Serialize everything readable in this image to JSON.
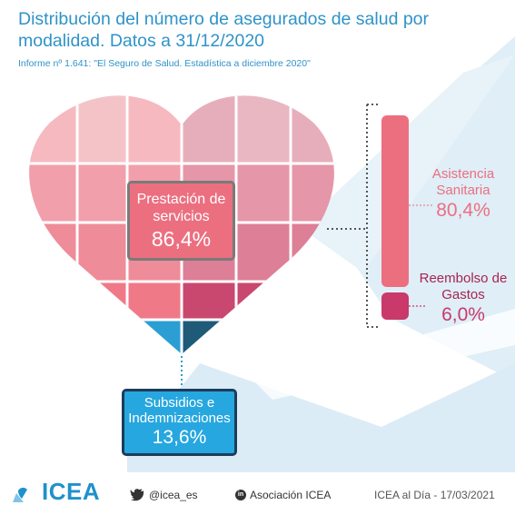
{
  "header": {
    "title": "Distribución del número de asegurados de salud por modalidad. Datos a 31/12/2020",
    "subtitle": "Informe nº 1.641: \"El Seguro de Salud. Estadística a diciembre 2020\""
  },
  "chart_data": {
    "type": "pie",
    "title": "Distribución del número de asegurados de salud por modalidad. Datos a 31/12/2020",
    "subtitle": "Informe nº 1.641: \"El Seguro de Salud. Estadística a diciembre 2020\"",
    "categories": [
      "Prestación de servicios",
      "Subsidios e Indemnizaciones"
    ],
    "values": [
      86.4,
      13.6
    ],
    "value_labels": [
      "86,4%",
      "13,6%"
    ],
    "breakdown": {
      "parent": "Prestación de servicios",
      "categories": [
        "Asistencia Sanitaria",
        "Reembolso de Gastos"
      ],
      "values": [
        80.4,
        6.0
      ],
      "value_labels": [
        "80,4%",
        "6,0%"
      ]
    },
    "colors": {
      "prestacion": "#ec6f80",
      "asistencia": "#ec6f80",
      "reembolso": "#c9396a",
      "subsidios": "#27a7df",
      "accent_blue": "#2f93c8"
    }
  },
  "footer": {
    "brand": "ICEA",
    "twitter": "@icea_es",
    "linkedin": "Asociación ICEA",
    "date": "ICEA al Día - 17/03/2021"
  },
  "icons": {
    "logo": "icea-logo-icon",
    "twitter": "twitter-icon",
    "linkedin": "linkedin-icon"
  }
}
